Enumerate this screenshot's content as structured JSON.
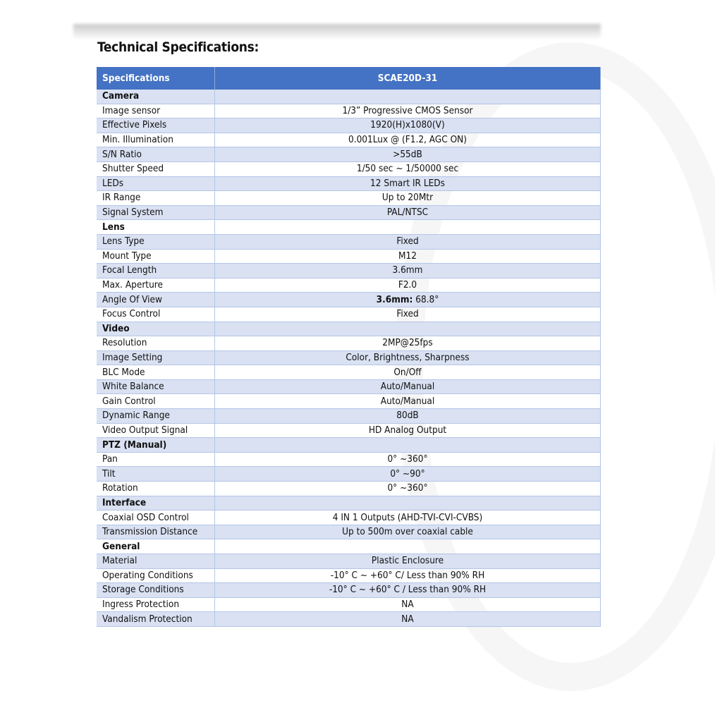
{
  "title": "Technical Specifications:",
  "header": {
    "col1": "Specifications",
    "col2": "SCAE20D-31"
  },
  "colors": {
    "header": "#4472C4",
    "band": "#D9E1F2"
  },
  "rows": [
    {
      "section": "Camera"
    },
    {
      "key": "Image sensor",
      "value": "1/3” Progressive CMOS Sensor"
    },
    {
      "key": "Effective Pixels",
      "value": "1920(H)x1080(V)"
    },
    {
      "key": "Min. Illumination",
      "value": "0.001Lux @ (F1.2, AGC ON)"
    },
    {
      "key": "S/N Ratio",
      "value": ">55dB"
    },
    {
      "key": "Shutter Speed",
      "value": "1/50 sec ~ 1/50000 sec"
    },
    {
      "key": "LEDs",
      "value": "12 Smart IR LEDs"
    },
    {
      "key": "IR Range",
      "value": "Up to 20Mtr"
    },
    {
      "key": "Signal System",
      "value": "PAL/NTSC"
    },
    {
      "section": "Lens"
    },
    {
      "key": "Lens Type",
      "value": "Fixed"
    },
    {
      "key": "Mount Type",
      "value": "M12"
    },
    {
      "key": "Focal Length",
      "value": "3.6mm"
    },
    {
      "key": "Max. Aperture",
      "value": "F2.0"
    },
    {
      "key": "Angle Of View",
      "bold": "3.6mm:",
      "value": " 68.8°"
    },
    {
      "key": "Focus Control",
      "value": "Fixed"
    },
    {
      "section": "Video"
    },
    {
      "key": "Resolution",
      "value": "2MP@25fps"
    },
    {
      "key": "Image Setting",
      "value": "Color, Brightness, Sharpness"
    },
    {
      "key": "BLC Mode",
      "value": "On/Off"
    },
    {
      "key": "White Balance",
      "value": "Auto/Manual"
    },
    {
      "key": "Gain Control",
      "value": "Auto/Manual"
    },
    {
      "key": "Dynamic Range",
      "value": "80dB"
    },
    {
      "key": "Video Output Signal",
      "value": "HD Analog Output"
    },
    {
      "section": "PTZ (Manual)"
    },
    {
      "key": "Pan",
      "value": "0° ~360°"
    },
    {
      "key": "Tilt",
      "value": "0° ~90°"
    },
    {
      "key": "Rotation",
      "value": "0° ~360°"
    },
    {
      "section": "Interface"
    },
    {
      "key": "Coaxial OSD Control",
      "value": "4 IN 1 Outputs (AHD-TVI-CVI-CVBS)"
    },
    {
      "key": "Transmission Distance",
      "value": "Up to 500m over coaxial cable"
    },
    {
      "section": "General"
    },
    {
      "key": "Material",
      "value": "Plastic Enclosure"
    },
    {
      "key": "Operating Conditions",
      "value": "-10° C ~ +60° C/ Less than 90% RH"
    },
    {
      "key": "Storage Conditions",
      "value": "-10° C ~ +60° C / Less than 90% RH"
    },
    {
      "key": "Ingress Protection",
      "value": "NA"
    },
    {
      "key": "Vandalism Protection",
      "value": "NA"
    }
  ]
}
